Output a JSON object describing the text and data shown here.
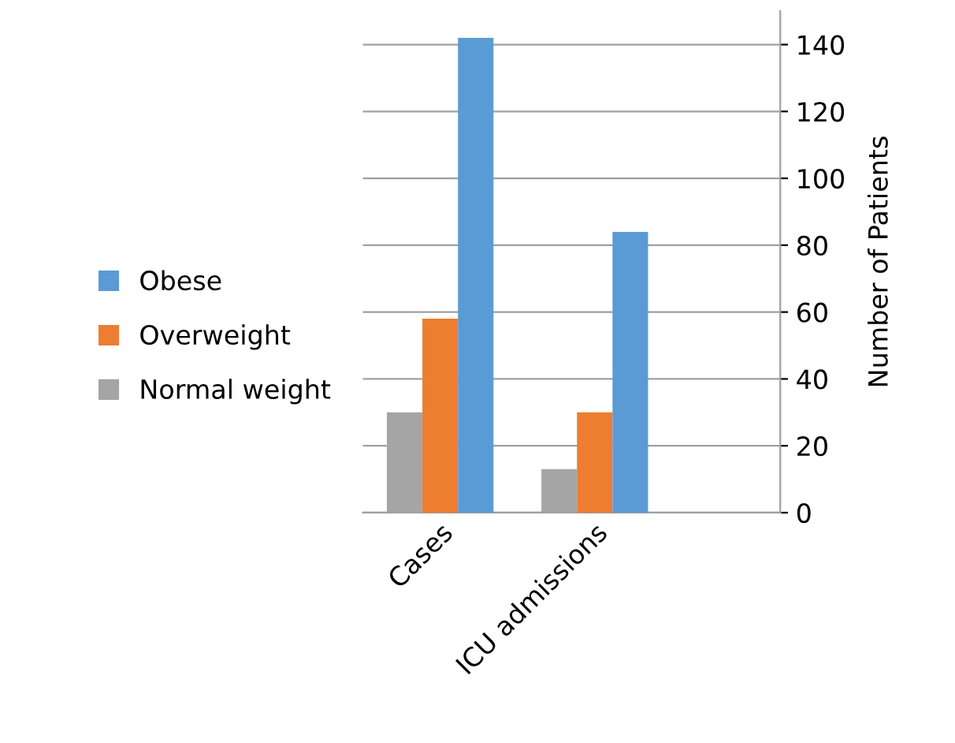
{
  "chart_data": {
    "type": "bar",
    "ylabel": "Number of Patients",
    "categories": [
      "Cases",
      "ICU admissions"
    ],
    "series": [
      {
        "name": "Normal weight",
        "color": "#a5a5a5",
        "values": [
          30,
          13
        ]
      },
      {
        "name": "Overweight",
        "color": "#ed7d31",
        "values": [
          58,
          30
        ]
      },
      {
        "name": "Obese",
        "color": "#5b9bd5",
        "values": [
          142,
          84
        ]
      }
    ],
    "ylim": [
      0,
      150
    ],
    "yticks": [
      0,
      20,
      40,
      60,
      80,
      100,
      120,
      140
    ],
    "grid": "y",
    "legend": "left"
  }
}
